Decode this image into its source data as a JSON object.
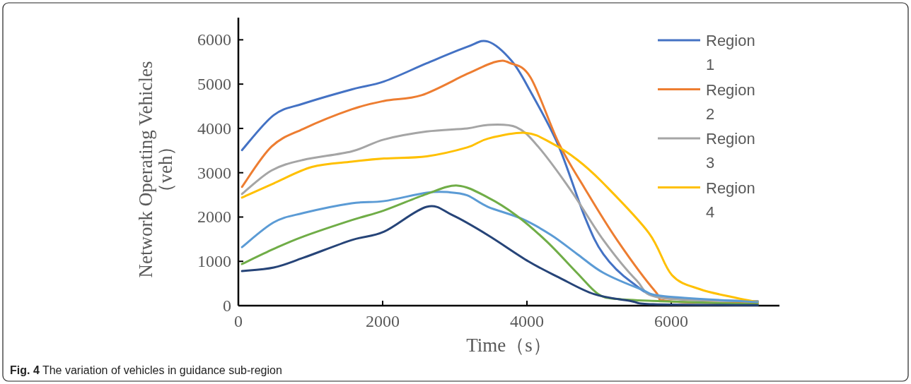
{
  "chart_data": {
    "type": "line",
    "xlabel": "Time（s）",
    "ylabel": "Network Operating Vehicles （veh）",
    "annotations": [
      "**Fig. 4** The variation of vehicles in guidance sub-region"
    ],
    "xlim": [
      0,
      7500
    ],
    "ylim": [
      0,
      6500
    ],
    "xticks": [
      0,
      2000,
      4000,
      6000
    ],
    "yticks": [
      0,
      1000,
      2000,
      3000,
      4000,
      5000,
      6000
    ],
    "grid": false,
    "legend": "top right",
    "marker": "none",
    "line_style": "solid",
    "series": [
      {
        "name": "Region 1",
        "color": "#4472c4",
        "x": [
          50,
          490,
          900,
          1570,
          2020,
          2610,
          3170,
          3460,
          3790,
          4050,
          4440,
          4800,
          5060,
          5450,
          5910,
          7200
        ],
        "values": [
          3510,
          4300,
          4560,
          4880,
          5060,
          5470,
          5840,
          5960,
          5520,
          4830,
          3600,
          2010,
          1160,
          530,
          180,
          100
        ]
      },
      {
        "name": "Region 2",
        "color": "#ed7d31",
        "x": [
          50,
          460,
          900,
          1570,
          2020,
          2540,
          3170,
          3560,
          3760,
          4050,
          4440,
          4800,
          5250,
          5780,
          5980,
          7200
        ],
        "values": [
          2680,
          3590,
          3990,
          4430,
          4620,
          4750,
          5230,
          5500,
          5480,
          5150,
          3670,
          2650,
          1480,
          320,
          100,
          50
        ]
      },
      {
        "name": "Region 3",
        "color": "#a5a5a5",
        "x": [
          50,
          460,
          900,
          1570,
          2020,
          2610,
          3170,
          3460,
          3850,
          4150,
          4610,
          5060,
          5520,
          5850,
          7200
        ],
        "values": [
          2520,
          3050,
          3290,
          3480,
          3750,
          3930,
          4000,
          4080,
          4030,
          3600,
          2600,
          1480,
          570,
          180,
          100
        ]
      },
      {
        "name": "Region 4",
        "color": "#ffc000",
        "x": [
          50,
          490,
          1020,
          1570,
          2020,
          2610,
          3170,
          3460,
          3980,
          4340,
          4700,
          5060,
          5690,
          6010,
          6400,
          6890,
          7200
        ],
        "values": [
          2440,
          2760,
          3130,
          3250,
          3320,
          3370,
          3570,
          3770,
          3900,
          3670,
          3290,
          2760,
          1640,
          690,
          370,
          180,
          80
        ]
      },
      {
        "color": "#5b9bd5",
        "x": [
          50,
          490,
          900,
          1570,
          2020,
          2610,
          2920,
          3170,
          3460,
          3930,
          4340,
          4700,
          5060,
          5580,
          5910,
          7200
        ],
        "values": [
          1320,
          1880,
          2090,
          2310,
          2360,
          2550,
          2560,
          2490,
          2230,
          1960,
          1590,
          1160,
          740,
          370,
          210,
          80
        ]
      },
      {
        "color": "#70ad47",
        "x": [
          50,
          490,
          900,
          1570,
          2020,
          2610,
          3040,
          3460,
          3850,
          4280,
          4700,
          4990,
          5250,
          5850,
          7200
        ],
        "values": [
          940,
          1280,
          1560,
          1930,
          2150,
          2520,
          2710,
          2440,
          2040,
          1440,
          730,
          260,
          150,
          100,
          30
        ]
      },
      {
        "color": "#264478",
        "x": [
          50,
          490,
          900,
          1570,
          2020,
          2610,
          2970,
          3460,
          4020,
          4440,
          4930,
          5450,
          5750,
          7200
        ],
        "values": [
          780,
          860,
          1080,
          1480,
          1670,
          2230,
          2040,
          1590,
          1000,
          640,
          260,
          100,
          30,
          10
        ]
      }
    ]
  }
}
